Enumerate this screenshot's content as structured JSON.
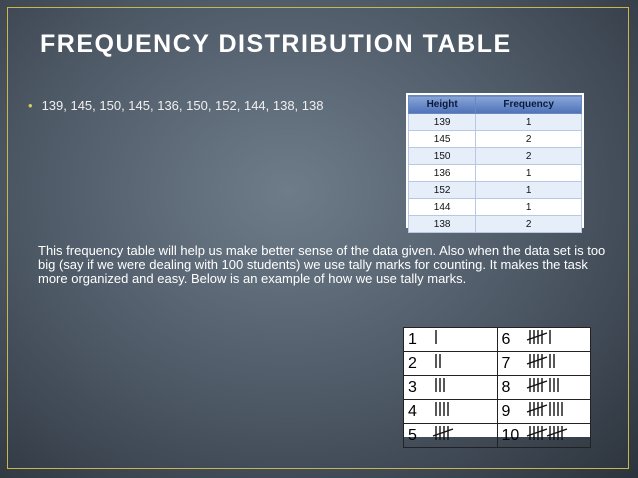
{
  "title": "FREQUENCY DISTRIBUTION TABLE",
  "bullet": "139, 145, 150, 145, 136, 150, 152, 144, 138, 138",
  "frequency_table": {
    "header": [
      "Height",
      "Frequency"
    ],
    "rows": [
      [
        139,
        1
      ],
      [
        145,
        2
      ],
      [
        150,
        2
      ],
      [
        136,
        1
      ],
      [
        152,
        1
      ],
      [
        144,
        1
      ],
      [
        138,
        2
      ]
    ]
  },
  "paragraph": "This frequency table will help us make better sense of the data given. Also when the data set is too big (say if we were dealing with 100 students) we use tally marks for counting. It makes the task more organized and easy. Below is an example of how we use tally marks.",
  "tally_table": {
    "rows": [
      [
        1,
        6
      ],
      [
        2,
        7
      ],
      [
        3,
        8
      ],
      [
        4,
        9
      ],
      [
        5,
        10
      ]
    ]
  }
}
